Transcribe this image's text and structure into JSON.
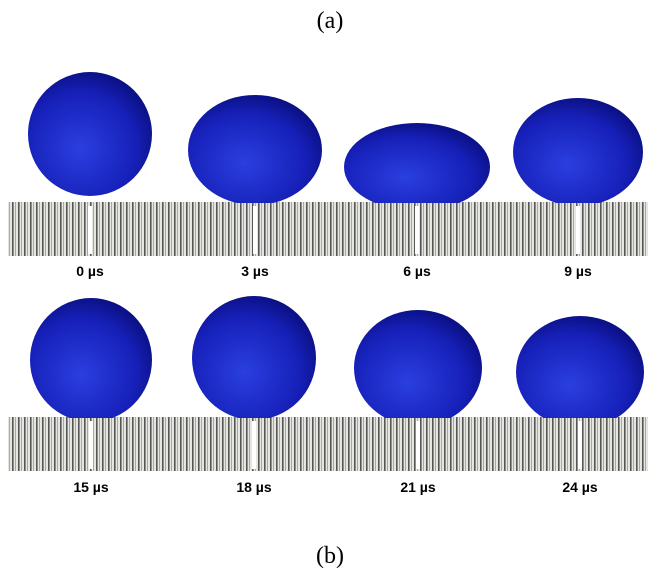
{
  "top_label": "(a)",
  "panels": [
    {
      "label": "0 µs"
    },
    {
      "label": "3 µs"
    },
    {
      "label": "6 µs"
    },
    {
      "label": "9 µs"
    },
    {
      "label": "15 µs"
    },
    {
      "label": "18 µs"
    },
    {
      "label": "21 µs"
    },
    {
      "label": "24 µs"
    }
  ],
  "bottom_label": "(b)"
}
